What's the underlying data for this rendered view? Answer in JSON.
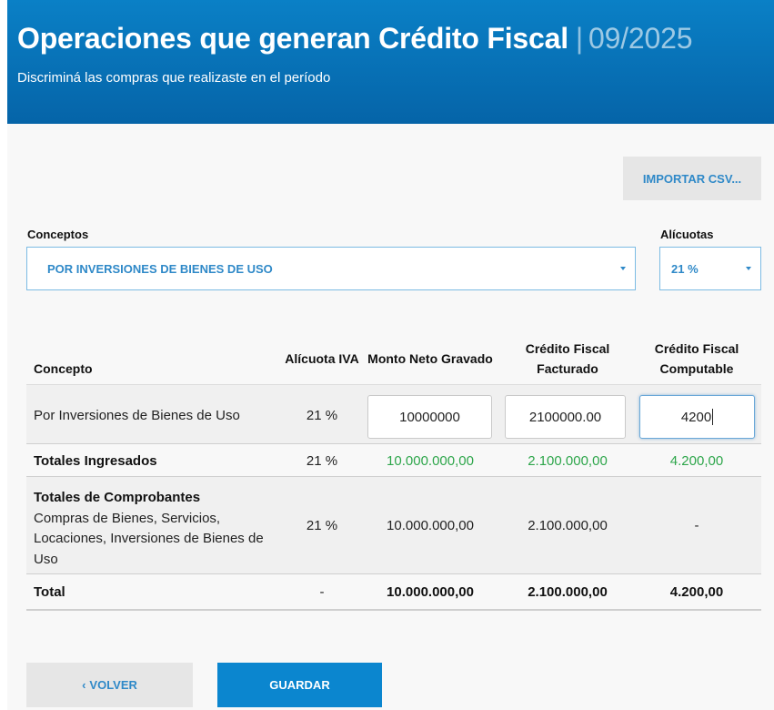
{
  "header": {
    "title": "Operaciones que generan Crédito Fiscal",
    "separator": "|",
    "period": "09/2025",
    "subtitle": "Discriminá las compras que realizaste en el período"
  },
  "import_button": "IMPORTAR CSV...",
  "conceptos": {
    "label": "Conceptos",
    "selected": "POR INVERSIONES DE BIENES DE USO"
  },
  "alicuotas": {
    "label": "Alícuotas",
    "selected": "21 %"
  },
  "table": {
    "headers": {
      "concepto": "Concepto",
      "alicuota": "Alícuota IVA",
      "monto": "Monto Neto Gravado",
      "cf_facturado": "Crédito Fiscal Facturado",
      "cf_computable": "Crédito Fiscal Computable"
    },
    "entry_row": {
      "concepto": "Por Inversiones de Bienes de Uso",
      "alicuota": "21 %",
      "monto": "10000000",
      "cf_facturado": "2100000.00",
      "cf_computable": "4200"
    },
    "totales_ingresados": {
      "label": "Totales Ingresados",
      "alicuota": "21 %",
      "monto": "10.000.000,00",
      "cf_facturado": "2.100.000,00",
      "cf_computable": "4.200,00"
    },
    "totales_comprobantes": {
      "label": "Totales de Comprobantes",
      "description": "Compras de Bienes, Servicios, Locaciones, Inversiones de Bienes de Uso",
      "alicuota": "21 %",
      "monto": "10.000.000,00",
      "cf_facturado": "2.100.000,00",
      "cf_computable": "-"
    },
    "total": {
      "label": "Total",
      "alicuota": "-",
      "monto": "10.000.000,00",
      "cf_facturado": "2.100.000,00",
      "cf_computable": "4.200,00"
    }
  },
  "buttons": {
    "back_icon": "chevron-left-icon",
    "back": "VOLVER",
    "save": "GUARDAR"
  },
  "colors": {
    "header_blue": "#0a80c6",
    "accent_blue": "#2f89c8",
    "green_totals": "#2ea64b"
  }
}
